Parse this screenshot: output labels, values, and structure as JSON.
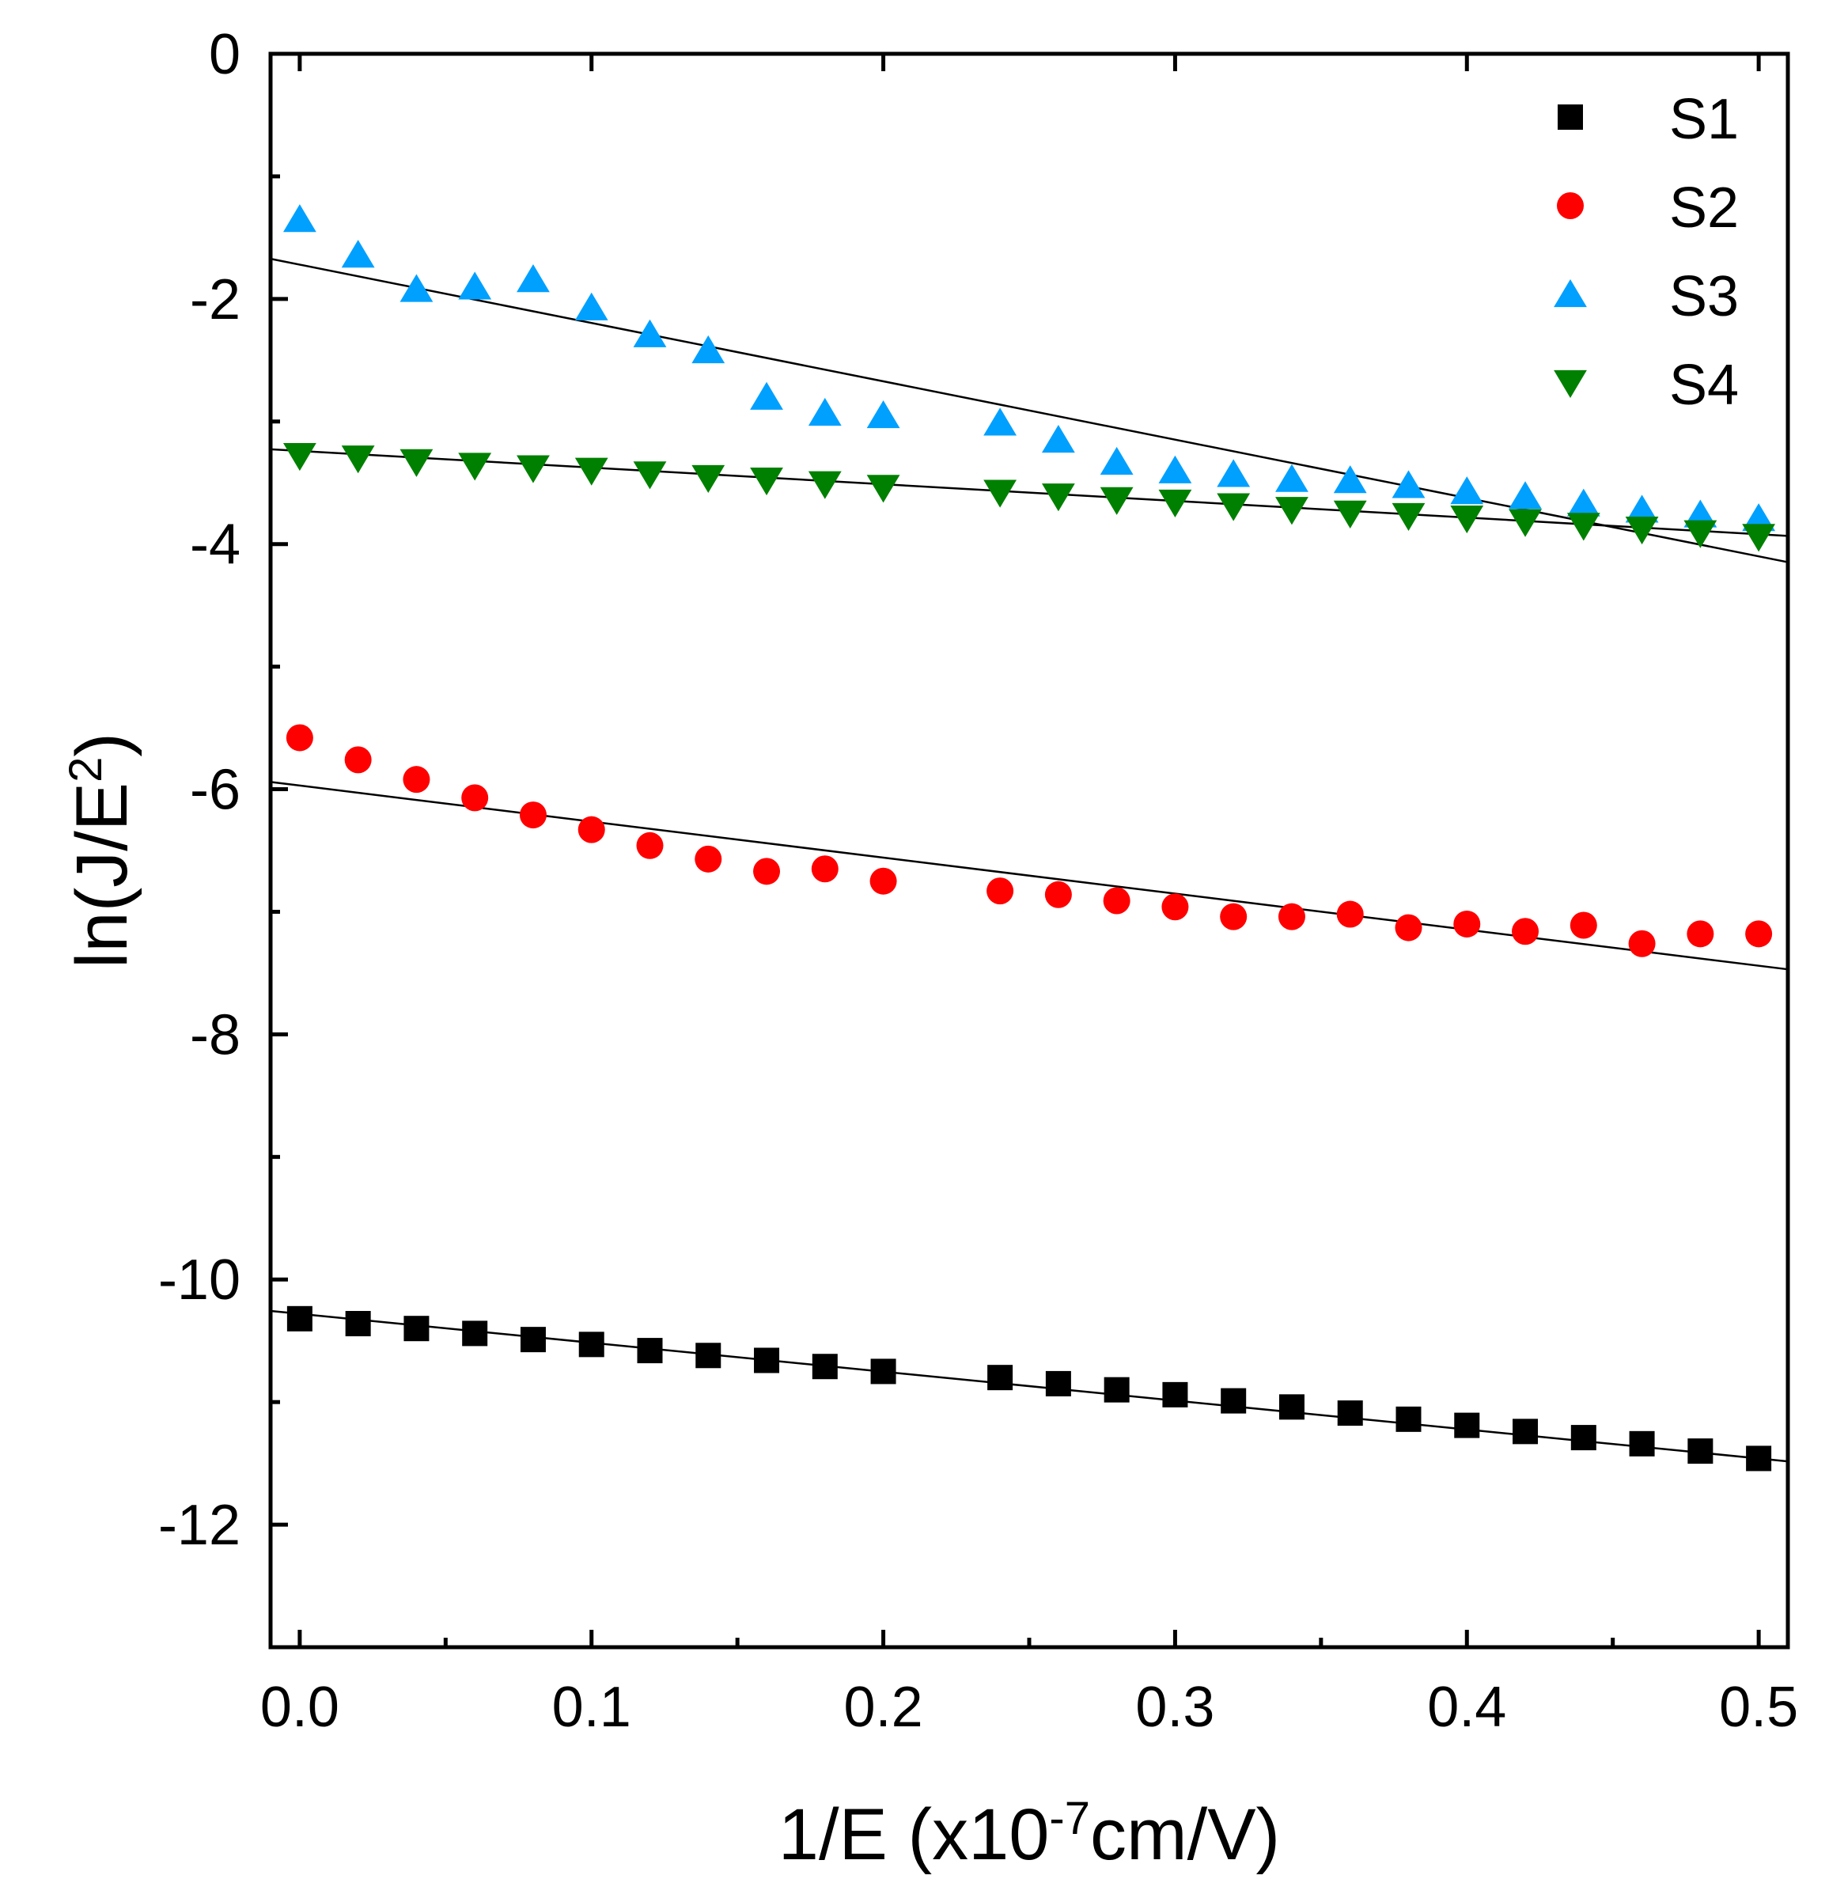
{
  "chart_data": {
    "type": "scatter",
    "xlabel": "1/E (x10",
    "xlabel_sup": "-7",
    "xlabel_end": "cm/V)",
    "ylabel": "ln(J/E",
    "ylabel_sup": "2",
    "ylabel_end": ")",
    "xlim": [
      -0.01,
      0.51
    ],
    "ylim": [
      -13,
      0
    ],
    "xticks": [
      0.0,
      0.1,
      0.2,
      0.3,
      0.4,
      0.5
    ],
    "xtick_labels": [
      "0.0",
      "0.1",
      "0.2",
      "0.3",
      "0.4",
      "0.5"
    ],
    "yticks": [
      0,
      -2,
      -4,
      -6,
      -8,
      -10,
      -12
    ],
    "ytick_labels": [
      "0",
      "-2",
      "-4",
      "-6",
      "-8",
      "-10",
      "-12"
    ],
    "grid": false,
    "legend_position": "top-right",
    "x": [
      0.0,
      0.02,
      0.04,
      0.06,
      0.08,
      0.1,
      0.12,
      0.14,
      0.16,
      0.18,
      0.2,
      0.24,
      0.26,
      0.28,
      0.3,
      0.32,
      0.34,
      0.36,
      0.38,
      0.4,
      0.42,
      0.44,
      0.46,
      0.48,
      0.5
    ],
    "series": [
      {
        "name": "S1",
        "marker": "square",
        "color": "#000000",
        "values": [
          -10.32,
          -10.36,
          -10.4,
          -10.44,
          -10.49,
          -10.53,
          -10.58,
          -10.62,
          -10.66,
          -10.71,
          -10.75,
          -10.8,
          -10.85,
          -10.9,
          -10.94,
          -10.99,
          -11.04,
          -11.09,
          -11.14,
          -11.19,
          -11.24,
          -11.29,
          -11.34,
          -11.4,
          -11.46
        ],
        "fit": [
          -10.28,
          -11.46
        ]
      },
      {
        "name": "S2",
        "marker": "circle",
        "color": "#ff0000",
        "values": [
          -5.58,
          -5.76,
          -5.92,
          -6.07,
          -6.21,
          -6.33,
          -6.46,
          -6.57,
          -6.67,
          -6.65,
          -6.75,
          -6.83,
          -6.86,
          -6.91,
          -6.96,
          -7.04,
          -7.04,
          -7.02,
          -7.13,
          -7.1,
          -7.16,
          -7.11,
          -7.26,
          -7.18,
          -7.18
        ],
        "fit": [
          -5.97,
          -7.44
        ]
      },
      {
        "name": "S3",
        "marker": "triangle-up",
        "color": "#00a0ff",
        "values": [
          -1.35,
          -1.64,
          -1.92,
          -1.9,
          -1.84,
          -2.07,
          -2.29,
          -2.42,
          -2.8,
          -2.93,
          -2.95,
          -3.01,
          -3.15,
          -3.33,
          -3.4,
          -3.43,
          -3.47,
          -3.48,
          -3.52,
          -3.57,
          -3.61,
          -3.67,
          -3.72,
          -3.76,
          -3.79
        ],
        "fit": [
          -1.72,
          -4.1
        ]
      },
      {
        "name": "S4",
        "marker": "triangle-down",
        "color": "#008000",
        "values": [
          -3.28,
          -3.3,
          -3.33,
          -3.36,
          -3.38,
          -3.4,
          -3.43,
          -3.46,
          -3.48,
          -3.51,
          -3.54,
          -3.58,
          -3.61,
          -3.64,
          -3.66,
          -3.69,
          -3.72,
          -3.75,
          -3.77,
          -3.79,
          -3.82,
          -3.85,
          -3.88,
          -3.91,
          -3.94
        ],
        "fit": [
          -3.24,
          -3.92
        ]
      }
    ]
  }
}
